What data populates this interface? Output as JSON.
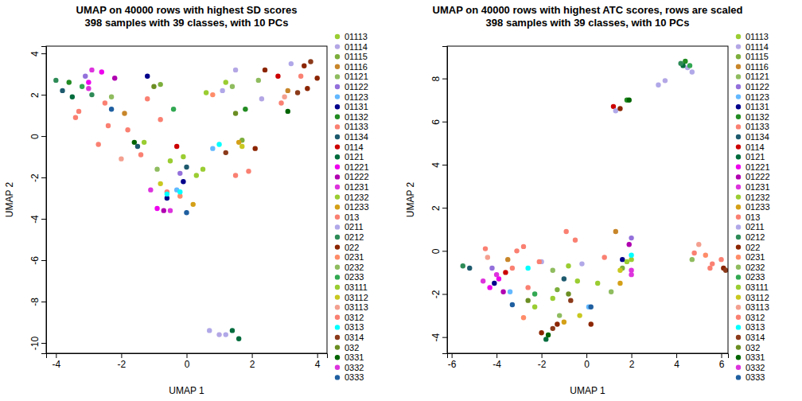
{
  "chart_data": [
    {
      "type": "scatter",
      "title": "UMAP on 40000 rows with highest SD scores",
      "subtitle": "398 samples with 39 classes, with 10 PCs",
      "x_label": "UMAP 1",
      "y_label": "UMAP 2",
      "xlim": [
        -4.3,
        4.3
      ],
      "ylim": [
        -10.5,
        4.35
      ],
      "xticks": [
        -4,
        -2,
        0,
        2,
        4
      ],
      "yticks": [
        -10,
        -8,
        -6,
        -4,
        -2,
        0,
        2,
        4
      ],
      "grid": false,
      "legend": "right",
      "series": [
        {
          "name": "01113",
          "color": "#9acd32",
          "x": [
            1.2,
            0.3,
            -0.5
          ],
          "values": [
            2.6,
            -1.9,
            -1.2
          ]
        },
        {
          "name": "01114",
          "color": "#b4a7e5",
          "x": [
            1.5,
            2.3,
            1.0
          ],
          "values": [
            3.2,
            1.8,
            -9.6
          ]
        },
        {
          "name": "01115",
          "color": "#7cae3c",
          "x": [
            -0.8,
            1.7
          ],
          "values": [
            2.5,
            -0.2
          ]
        },
        {
          "name": "01116",
          "color": "#c8862a",
          "x": [
            -1.9,
            3.1
          ],
          "values": [
            1.1,
            2.2
          ]
        },
        {
          "name": "01121",
          "color": "#8fbc5f",
          "x": [
            2.2,
            -2.3
          ],
          "values": [
            2.7,
            1.9
          ]
        },
        {
          "name": "01122",
          "color": "#9370db",
          "x": [
            -3.1,
            -0.2
          ],
          "values": [
            2.9,
            -1.8
          ]
        },
        {
          "name": "01123",
          "color": "#63b8ff",
          "x": [
            0.8,
            -0.3
          ],
          "values": [
            -0.6,
            -2.6
          ]
        },
        {
          "name": "01131",
          "color": "#00008b",
          "x": [
            -1.2,
            -0.1,
            -0.6
          ],
          "values": [
            2.9,
            -2.2,
            -3.0
          ]
        },
        {
          "name": "01132",
          "color": "#228b22",
          "x": [
            -3.6,
            1.8
          ],
          "values": [
            2.6,
            1.3
          ]
        },
        {
          "name": "01133",
          "color": "#fa8072",
          "x": [
            -3.3,
            -2.4,
            -1.2,
            2.9
          ],
          "values": [
            1.2,
            0.5,
            1.8,
            1.6
          ]
        },
        {
          "name": "01134",
          "color": "#1e5a6e",
          "x": [
            -3.8,
            -1.5,
            0
          ],
          "values": [
            2.2,
            -0.5,
            -1.5
          ]
        },
        {
          "name": "0114",
          "color": "#cc0000",
          "x": [
            2.8,
            -0.3
          ],
          "values": [
            2.9,
            -0.5
          ]
        },
        {
          "name": "0121",
          "color": "#006b3c",
          "x": [
            -3.5,
            1.6,
            1.4
          ],
          "values": [
            1.9,
            -9.8,
            -9.4
          ]
        },
        {
          "name": "01221",
          "color": "#ee00ee",
          "x": [
            -2.6,
            -3.0,
            -0.9
          ],
          "values": [
            3.1,
            2.6,
            -3.5
          ]
        },
        {
          "name": "01222",
          "color": "#b000b0",
          "x": [
            -2.2,
            -0.7
          ],
          "values": [
            2.8,
            -3.6
          ]
        },
        {
          "name": "01231",
          "color": "#dd33dd",
          "x": [
            -2.9,
            -1.1
          ],
          "values": [
            3.2,
            -2.6
          ]
        },
        {
          "name": "01232",
          "color": "#9acd32",
          "x": [
            0.5,
            -1.3
          ],
          "values": [
            -1.6,
            -0.3
          ]
        },
        {
          "name": "01233",
          "color": "#d4a017",
          "x": [
            0.2,
            1.6
          ],
          "values": [
            -3.3,
            -0.3
          ]
        },
        {
          "name": "013",
          "color": "#fa8072",
          "x": [
            -3.4,
            -2.7,
            -1.8,
            -0.8,
            3.5,
            -0.6,
            1.9
          ],
          "values": [
            0.9,
            -0.4,
            0.3,
            0.8,
            2.9,
            -2.7,
            -1.7
          ]
        },
        {
          "name": "0211",
          "color": "#b0a8e8",
          "x": [
            0.7,
            1.2,
            3.2,
            1.1
          ],
          "values": [
            -9.4,
            -9.6,
            3.5,
            2.2
          ]
        },
        {
          "name": "0212",
          "color": "#2e8b57",
          "x": [
            -4.0,
            -2.9
          ],
          "values": [
            2.7,
            2.0
          ]
        },
        {
          "name": "022",
          "color": "#8b2500",
          "x": [
            2.4,
            3.6,
            3.7,
            2.1,
            4.0
          ],
          "values": [
            3.2,
            3.4,
            2.3,
            -0.6,
            2.8
          ]
        },
        {
          "name": "0231",
          "color": "#ff8c69",
          "x": [
            0.8,
            -0.2
          ],
          "values": [
            2.0,
            -2.9
          ]
        },
        {
          "name": "0232",
          "color": "#8fbc5f",
          "x": [
            1.4,
            -0.9
          ],
          "values": [
            2.4,
            -1.6
          ]
        },
        {
          "name": "0233",
          "color": "#32a852",
          "x": [
            -3.2,
            -0.4
          ],
          "values": [
            2.4,
            1.3
          ]
        },
        {
          "name": "03111",
          "color": "#9acd32",
          "x": [
            0.6,
            -0.1
          ],
          "values": [
            2.1,
            -1.0
          ]
        },
        {
          "name": "03112",
          "color": "#c8c820",
          "x": [
            1.7,
            -0.8
          ],
          "values": [
            -0.5,
            -2.3
          ]
        },
        {
          "name": "03113",
          "color": "#f4a090",
          "x": [
            3.0,
            -2.0
          ],
          "values": [
            1.9,
            -1.1
          ]
        },
        {
          "name": "0312",
          "color": "#fa8072",
          "x": [
            -1.4,
            1.5,
            -2.5
          ],
          "values": [
            -0.9,
            -1.9,
            1.6
          ]
        },
        {
          "name": "0313",
          "color": "#00ffff",
          "x": [
            1.0,
            -0.6,
            -0.2
          ],
          "values": [
            -0.4,
            -2.8,
            -2.7
          ]
        },
        {
          "name": "0314",
          "color": "#8b3a1a",
          "x": [
            1.2,
            3.4,
            3.8
          ],
          "values": [
            -0.8,
            2.1,
            3.6
          ]
        },
        {
          "name": "032",
          "color": "#6b8e23",
          "x": [
            -1.0,
            1.5
          ],
          "values": [
            2.4,
            1.1
          ]
        },
        {
          "name": "0331",
          "color": "#006400",
          "x": [
            -1.6,
            3.1
          ],
          "values": [
            -0.3,
            1.2
          ]
        },
        {
          "name": "0332",
          "color": "#dd33dd",
          "x": [
            -3.0,
            -0.5
          ],
          "values": [
            2.3,
            -3.6
          ]
        },
        {
          "name": "0333",
          "color": "#1f5fa0",
          "x": [
            -2.3,
            0.0
          ],
          "values": [
            1.3,
            -3.7
          ]
        }
      ]
    },
    {
      "type": "scatter",
      "title": "UMAP on 40000 rows with highest ATC scores, rows are scaled",
      "subtitle": "398 samples with 39 classes, with 10 PCs",
      "x_label": "UMAP 1",
      "y_label": "UMAP 2",
      "xlim": [
        -6.2,
        6.3
      ],
      "ylim": [
        -4.75,
        9.5
      ],
      "xticks": [
        -6,
        -4,
        -2,
        0,
        2,
        4,
        6
      ],
      "yticks": [
        -4,
        -2,
        0,
        2,
        4,
        6,
        8
      ],
      "grid": false,
      "legend": "right",
      "series": [
        {
          "name": "01113",
          "color": "#9acd32",
          "x": [
            -1.5,
            0.5,
            2.0
          ],
          "values": [
            -2.2,
            -1.5,
            -0.4
          ]
        },
        {
          "name": "01114",
          "color": "#b4a7e5",
          "x": [
            4.5,
            3.5,
            -2
          ],
          "values": [
            8.5,
            7.9,
            -0.5
          ]
        },
        {
          "name": "01115",
          "color": "#7cae3c",
          "x": [
            -1.3,
            1.6
          ],
          "values": [
            -1.8,
            -0.8
          ]
        },
        {
          "name": "01116",
          "color": "#c8862a",
          "x": [
            1.3,
            -3.5
          ],
          "values": [
            0.9,
            -0.4
          ]
        },
        {
          "name": "01121",
          "color": "#8fbc5f",
          "x": [
            -1.2,
            4.7
          ],
          "values": [
            -3.0,
            -0.4
          ]
        },
        {
          "name": "01122",
          "color": "#9370db",
          "x": [
            -4.2,
            2.0
          ],
          "values": [
            -0.8,
            0.6
          ]
        },
        {
          "name": "01123",
          "color": "#63b8ff",
          "x": [
            0.1,
            -3.4
          ],
          "values": [
            -2.6,
            -1.9
          ]
        },
        {
          "name": "01131",
          "color": "#00008b",
          "x": [
            -4.1,
            1.6
          ],
          "values": [
            -1.5,
            -0.4
          ]
        },
        {
          "name": "01132",
          "color": "#228b22",
          "x": [
            4.4,
            1.8
          ],
          "values": [
            8.8,
            7.0
          ]
        },
        {
          "name": "01133",
          "color": "#fa8072",
          "x": [
            -4.5,
            -2.8,
            5.6
          ],
          "values": [
            0.1,
            0.2,
            -0.6
          ]
        },
        {
          "name": "01134",
          "color": "#1e5a6e",
          "x": [
            -5.2,
            -1.0
          ],
          "values": [
            -0.8,
            -1.3
          ]
        },
        {
          "name": "0114",
          "color": "#cc0000",
          "x": [
            1.2,
            -3.6
          ],
          "values": [
            6.7,
            -1.0
          ]
        },
        {
          "name": "0121",
          "color": "#006b3c",
          "x": [
            -1.8,
            4.3
          ],
          "values": [
            -4.1,
            8.6
          ]
        },
        {
          "name": "01221",
          "color": "#ee00ee",
          "x": [
            -3.9,
            -4.3
          ],
          "values": [
            -1.3,
            -1.7
          ]
        },
        {
          "name": "01222",
          "color": "#b000b0",
          "x": [
            -3.7,
            1.9
          ],
          "values": [
            -1.9,
            0.3
          ]
        },
        {
          "name": "01231",
          "color": "#dd33dd",
          "x": [
            -4.0,
            2.0
          ],
          "values": [
            -1.1,
            -1.1
          ]
        },
        {
          "name": "01232",
          "color": "#9acd32",
          "x": [
            -0.8,
            -2.3
          ],
          "values": [
            -0.7,
            -2.6
          ]
        },
        {
          "name": "01233",
          "color": "#d4a017",
          "x": [
            1.5,
            -1.0
          ],
          "values": [
            -1.5,
            -3.3
          ]
        },
        {
          "name": "013",
          "color": "#fa8072",
          "x": [
            -3.1,
            -2.1,
            -0.5,
            0.8,
            4.8,
            6.0,
            -2.6
          ],
          "values": [
            0.0,
            -0.5,
            0.5,
            -0.3,
            -0.1,
            -0.4,
            -1.7
          ]
        },
        {
          "name": "0211",
          "color": "#b0a8e8",
          "x": [
            4.7,
            3.2,
            1.3,
            -0.2
          ],
          "values": [
            8.3,
            7.7,
            6.5,
            -0.6
          ]
        },
        {
          "name": "0212",
          "color": "#2e8b57",
          "x": [
            -5.5,
            4.2
          ],
          "values": [
            -0.7,
            8.7
          ]
        },
        {
          "name": "022",
          "color": "#8b2500",
          "x": [
            1.5,
            6.1,
            -1.3,
            0.2,
            -2.0
          ],
          "values": [
            6.6,
            -0.8,
            -3.4,
            -3.4,
            -3.8
          ]
        },
        {
          "name": "0231",
          "color": "#ff8c69",
          "x": [
            -2.8,
            5.3
          ],
          "values": [
            -3.1,
            -0.2
          ]
        },
        {
          "name": "0232",
          "color": "#8fbc5f",
          "x": [
            -1.5,
            1.1
          ],
          "values": [
            -0.9,
            -1.9
          ]
        },
        {
          "name": "0233",
          "color": "#32a852",
          "x": [
            -2.3,
            4.6
          ],
          "values": [
            -2.0,
            8.6
          ]
        },
        {
          "name": "03111",
          "color": "#9acd32",
          "x": [
            -0.4,
            1.8
          ],
          "values": [
            -1.4,
            -0.5
          ]
        },
        {
          "name": "03112",
          "color": "#c8c820",
          "x": [
            -0.3,
            1.5
          ],
          "values": [
            -3.0,
            -0.9
          ]
        },
        {
          "name": "03113",
          "color": "#f4a090",
          "x": [
            -4.4,
            5.0
          ],
          "values": [
            -0.3,
            0.3
          ]
        },
        {
          "name": "0312",
          "color": "#fa8072",
          "x": [
            -3.3,
            -0.9,
            5.5
          ],
          "values": [
            -0.8,
            0.9,
            -0.8
          ]
        },
        {
          "name": "0313",
          "color": "#00ffff",
          "x": [
            2.0,
            -2.6
          ],
          "values": [
            -0.2,
            -0.8
          ]
        },
        {
          "name": "0314",
          "color": "#8b3a1a",
          "x": [
            -1.5,
            -0.7,
            6.2
          ],
          "values": [
            -3.6,
            -2.3,
            -0.9
          ]
        },
        {
          "name": "032",
          "color": "#6b8e23",
          "x": [
            -0.8,
            -2.6
          ],
          "values": [
            -2.0,
            -2.3
          ]
        },
        {
          "name": "0331",
          "color": "#006400",
          "x": [
            -1.7,
            1.9
          ],
          "values": [
            -3.9,
            7.0
          ]
        },
        {
          "name": "0332",
          "color": "#dd33dd",
          "x": [
            -4.6,
            2.0
          ],
          "values": [
            -1.4,
            -0.9
          ]
        },
        {
          "name": "0333",
          "color": "#1f5fa0",
          "x": [
            0.2,
            -3.3
          ],
          "values": [
            -2.6,
            -2.5
          ]
        }
      ]
    }
  ]
}
